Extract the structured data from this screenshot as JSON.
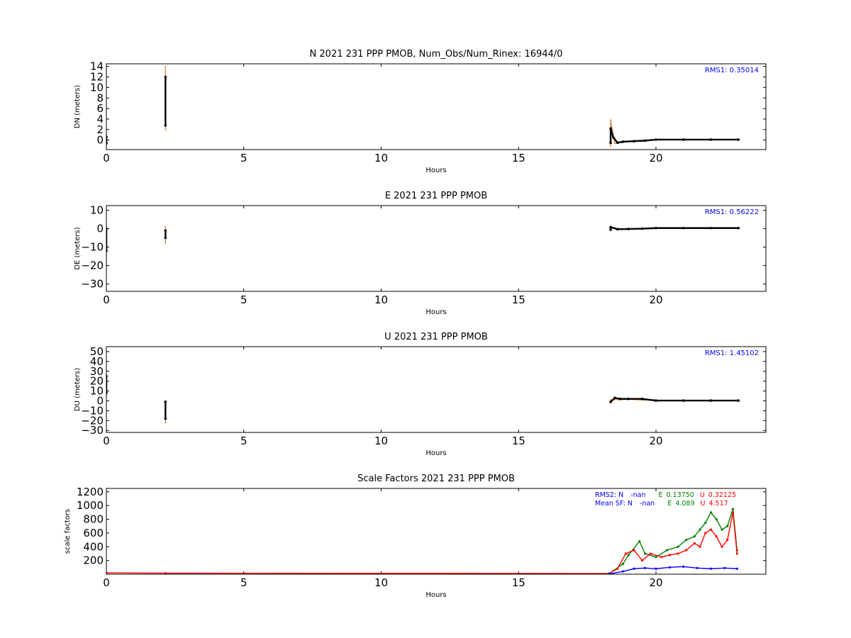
{
  "chart_data": [
    {
      "type": "scatter",
      "title": "N 2021 231 PPP  PMOB, Num_Obs/Num_Rinex: 16944/0",
      "xlabel": "Hours",
      "ylabel": "DN (meters)",
      "xlim": [
        0,
        24
      ],
      "ylim": [
        -1.8,
        14.5
      ],
      "x_ticks": [
        0,
        5,
        10,
        15,
        20
      ],
      "y_ticks": [
        0,
        2,
        4,
        6,
        8,
        10,
        12,
        14
      ],
      "annotation": "RMS1:  0.35014",
      "series": [
        {
          "color": "#e07b39",
          "points": [
            [
              0.0,
              -1.0
            ],
            [
              0.0,
              1.0
            ],
            [
              2.15,
              2.0
            ],
            [
              2.15,
              14.0
            ],
            [
              18.35,
              -1.2
            ],
            [
              18.35,
              3.8
            ],
            [
              18.5,
              -0.6
            ],
            [
              19.0,
              -0.3
            ],
            [
              20.0,
              0.1
            ],
            [
              23.0,
              0.1
            ]
          ]
        },
        {
          "color": "#000000",
          "points": [
            [
              0.0,
              -0.6
            ],
            [
              0.0,
              0.6
            ],
            [
              2.15,
              2.8
            ],
            [
              2.15,
              12.0
            ],
            [
              18.35,
              -0.5
            ],
            [
              18.35,
              2.2
            ],
            [
              18.45,
              0.5
            ],
            [
              18.6,
              -0.5
            ],
            [
              18.8,
              -0.3
            ],
            [
              19.2,
              -0.2
            ],
            [
              19.6,
              -0.1
            ],
            [
              20.0,
              0.1
            ],
            [
              21.0,
              0.1
            ],
            [
              22.0,
              0.1
            ],
            [
              23.0,
              0.1
            ]
          ]
        }
      ]
    },
    {
      "type": "scatter",
      "title": "E 2021 231 PPP  PMOB",
      "xlabel": "Hours",
      "ylabel": "DE (meters)",
      "xlim": [
        0,
        24
      ],
      "ylim": [
        -34,
        12.5
      ],
      "x_ticks": [
        0,
        5,
        10,
        15,
        20
      ],
      "y_ticks": [
        -30,
        -20,
        -10,
        0,
        10
      ],
      "annotation": "RMS1:  0.56222",
      "series": [
        {
          "color": "#e07b39",
          "points": [
            [
              0.0,
              -16.0
            ],
            [
              0.0,
              1.0
            ],
            [
              2.15,
              -8.0
            ],
            [
              2.15,
              1.0
            ],
            [
              18.35,
              -1.0
            ],
            [
              18.35,
              1.0
            ],
            [
              20.0,
              0.3
            ],
            [
              23.0,
              0.3
            ]
          ]
        },
        {
          "color": "#000000",
          "points": [
            [
              0.0,
              -12.0
            ],
            [
              0.0,
              0.0
            ],
            [
              2.15,
              -5.0
            ],
            [
              2.15,
              -1.0
            ],
            [
              18.35,
              -0.5
            ],
            [
              18.35,
              0.8
            ],
            [
              18.6,
              -0.3
            ],
            [
              19.0,
              -0.2
            ],
            [
              19.5,
              0.0
            ],
            [
              20.0,
              0.3
            ],
            [
              21.0,
              0.3
            ],
            [
              22.0,
              0.3
            ],
            [
              23.0,
              0.3
            ]
          ]
        }
      ]
    },
    {
      "type": "scatter",
      "title": "U 2021 231 PPP  PMOB",
      "xlabel": "Hours",
      "ylabel": "DU (meters)",
      "xlim": [
        0,
        24
      ],
      "ylim": [
        -32,
        55
      ],
      "x_ticks": [
        0,
        5,
        10,
        15,
        20
      ],
      "y_ticks": [
        -30,
        -20,
        -10,
        0,
        10,
        20,
        30,
        40,
        50
      ],
      "annotation": "RMS1:  1.45102",
      "series": [
        {
          "color": "#e07b39",
          "points": [
            [
              0.0,
              5.0
            ],
            [
              0.0,
              30.0
            ],
            [
              2.15,
              -22.0
            ],
            [
              2.15,
              0.0
            ],
            [
              18.35,
              -2.0
            ],
            [
              18.35,
              1.0
            ],
            [
              19.0,
              1.5
            ],
            [
              20.0,
              0.3
            ],
            [
              23.0,
              0.3
            ]
          ]
        },
        {
          "color": "#000000",
          "points": [
            [
              0.0,
              8.0
            ],
            [
              0.0,
              25.0
            ],
            [
              2.15,
              -18.0
            ],
            [
              2.15,
              -1.0
            ],
            [
              18.35,
              -1.0
            ],
            [
              18.5,
              3.0
            ],
            [
              18.7,
              2.0
            ],
            [
              19.0,
              2.0
            ],
            [
              19.5,
              2.0
            ],
            [
              20.0,
              0.3
            ],
            [
              21.0,
              0.3
            ],
            [
              22.0,
              0.3
            ],
            [
              23.0,
              0.3
            ]
          ]
        }
      ]
    },
    {
      "type": "line",
      "title": "Scale Factors 2021 231 PPP  PMOB",
      "xlabel": "Hours",
      "ylabel": "scale factors",
      "xlim": [
        0,
        24
      ],
      "ylim": [
        0,
        1250
      ],
      "x_ticks": [
        0,
        5,
        10,
        15,
        20
      ],
      "y_ticks": [
        200,
        400,
        600,
        800,
        1000,
        1200
      ],
      "annotation_lines": [
        {
          "label": "RMS2: N",
          "N": "-nan",
          "E_label": "E",
          "E": "0.13750",
          "U_label": "U",
          "U": "0.32125"
        },
        {
          "label": "Mean SF: N",
          "N": "-nan",
          "E_label": "E",
          "E": "4.089",
          "U_label": "U",
          "U": "4.517"
        }
      ],
      "series": [
        {
          "color": "#008000",
          "x": [
            18.3,
            18.8,
            19.0,
            19.4,
            19.6,
            20.0,
            20.4,
            20.8,
            21.1,
            21.4,
            21.6,
            21.8,
            22.0,
            22.2,
            22.4,
            22.6,
            22.8,
            22.95
          ],
          "y": [
            10,
            150,
            280,
            480,
            300,
            250,
            350,
            400,
            500,
            550,
            650,
            750,
            900,
            800,
            650,
            700,
            950,
            350
          ]
        },
        {
          "color": "#ff0000",
          "x": [
            0.0,
            2.15,
            18.3,
            18.6,
            18.9,
            19.2,
            19.5,
            19.8,
            20.2,
            20.5,
            20.8,
            21.1,
            21.4,
            21.6,
            21.8,
            22.0,
            22.2,
            22.4,
            22.6,
            22.8,
            22.95
          ],
          "y": [
            20,
            15,
            10,
            80,
            300,
            350,
            200,
            300,
            250,
            280,
            300,
            350,
            450,
            400,
            600,
            650,
            550,
            400,
            500,
            900,
            300
          ]
        },
        {
          "color": "#0000ff",
          "x": [
            18.3,
            18.8,
            19.2,
            19.6,
            20.0,
            20.5,
            21.0,
            21.5,
            22.0,
            22.5,
            22.95
          ],
          "y": [
            5,
            40,
            80,
            90,
            80,
            100,
            110,
            90,
            80,
            90,
            80
          ]
        }
      ]
    }
  ]
}
